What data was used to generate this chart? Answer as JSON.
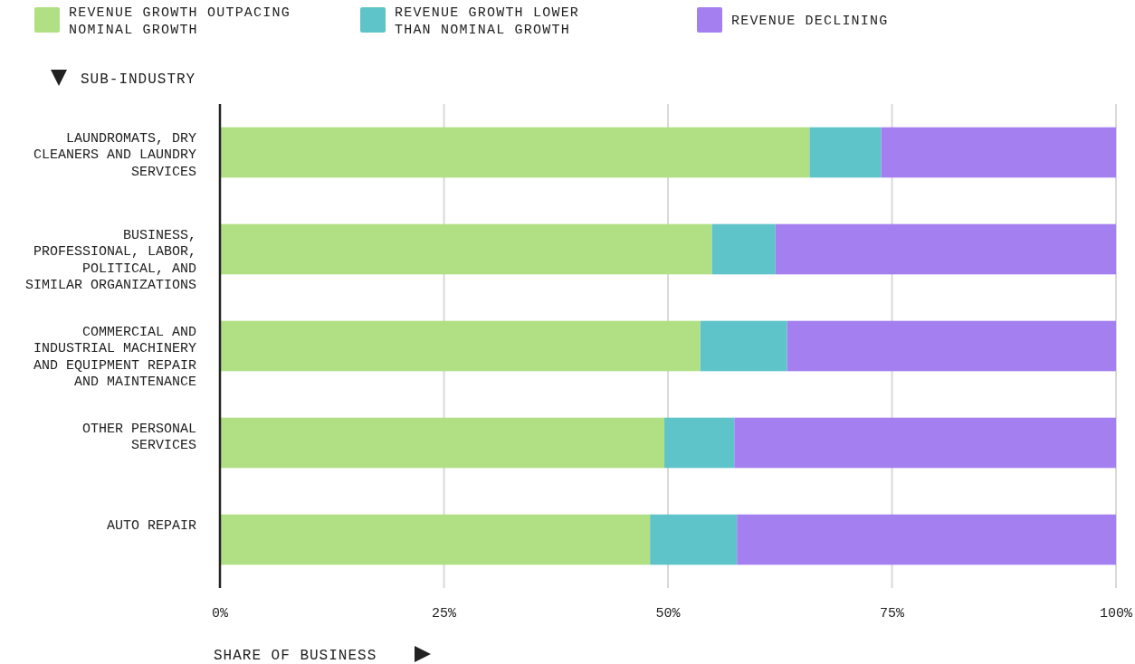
{
  "chart_data": {
    "type": "bar",
    "orientation": "horizontal",
    "stacked": true,
    "xlabel": "SHARE OF BUSINESS",
    "ylabel": "SUB-INDUSTRY",
    "categories": [
      "LAUNDROMATS, DRY CLEANERS AND LAUNDRY SERVICES",
      "BUSINESS, PROFESSIONAL, LABOR, POLITICAL, AND SIMILAR ORGANIZATIONS",
      "COMMERCIAL AND INDUSTRIAL MACHINERY AND EQUIPMENT REPAIR AND MAINTENANCE",
      "OTHER PERSONAL SERVICES",
      "AUTO REPAIR"
    ],
    "series": [
      {
        "name": "REVENUE GROWTH OUTPACING NOMINAL GROWTH",
        "color": "#b1e084",
        "values": [
          65.8,
          54.9,
          53.6,
          49.6,
          48.0
        ]
      },
      {
        "name": "REVENUE GROWTH LOWER THAN NOMINAL GROWTH",
        "color": "#5fc4c9",
        "values": [
          8.0,
          7.1,
          9.7,
          7.8,
          9.7
        ]
      },
      {
        "name": "REVENUE DECLINING",
        "color": "#a47fef",
        "values": [
          26.2,
          38.0,
          36.7,
          42.6,
          42.3
        ]
      }
    ],
    "xlim": [
      0,
      100
    ],
    "xticks": [
      {
        "value": 0,
        "label": "0%"
      },
      {
        "value": 25,
        "label": "25%"
      },
      {
        "value": 50,
        "label": "50%"
      },
      {
        "value": 75,
        "label": "75%"
      },
      {
        "value": 100,
        "label": "100%"
      }
    ],
    "grid": "x",
    "legend": "top left"
  }
}
